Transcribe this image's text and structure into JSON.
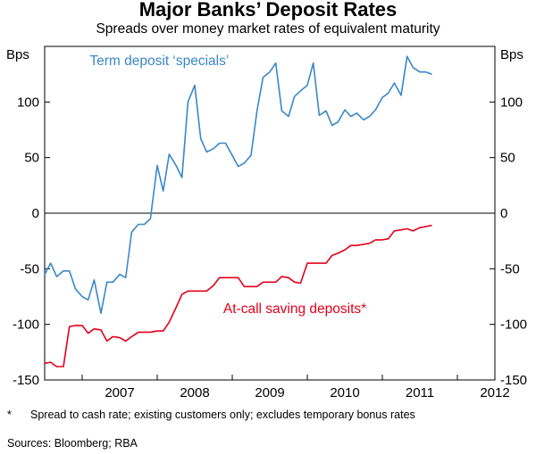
{
  "title": "Major Banks’ Deposit Rates",
  "subtitle": "Spreads over money market rates of equivalent maturity",
  "footnote": {
    "mark": "*",
    "text": "Spread to cash rate; existing customers only; excludes temporary bonus rates"
  },
  "sources": "Sources: Bloomberg; RBA",
  "colors": {
    "term": "#3a87c8",
    "call": "#e3001b",
    "axis": "#000000"
  },
  "chart_data": {
    "type": "line",
    "y_unit_left": "Bps",
    "y_unit_right": "Bps",
    "ylim": [
      -150,
      150
    ],
    "yticks": [
      -150,
      -100,
      -50,
      0,
      50,
      100
    ],
    "xlim": [
      2006.5,
      2012.5
    ],
    "x_year_labels": [
      "2007",
      "2008",
      "2009",
      "2010",
      "2011",
      "2012"
    ],
    "zero_line": true,
    "grid": false,
    "series": [
      {
        "name": "Term deposit ‘specials’",
        "color": "#3a87c8",
        "x": [
          2006.5,
          2006.58,
          2006.66,
          2006.75,
          2006.83,
          2006.91,
          2007.0,
          2007.08,
          2007.16,
          2007.25,
          2007.33,
          2007.41,
          2007.5,
          2007.58,
          2007.66,
          2007.75,
          2007.83,
          2007.91,
          2008.0,
          2008.08,
          2008.16,
          2008.25,
          2008.33,
          2008.41,
          2008.5,
          2008.58,
          2008.66,
          2008.75,
          2008.83,
          2008.91,
          2009.0,
          2009.08,
          2009.16,
          2009.25,
          2009.33,
          2009.41,
          2009.5,
          2009.58,
          2009.66,
          2009.75,
          2009.83,
          2009.91,
          2010.0,
          2010.08,
          2010.16,
          2010.25,
          2010.33,
          2010.41,
          2010.5,
          2010.58,
          2010.66,
          2010.75,
          2010.83,
          2010.91,
          2011.0,
          2011.08,
          2011.16,
          2011.25,
          2011.33,
          2011.41,
          2011.5,
          2011.58,
          2011.66
        ],
        "values": [
          -55,
          -45,
          -57,
          -52,
          -52,
          -68,
          -75,
          -78,
          -60,
          -90,
          -62,
          -62,
          -55,
          -58,
          -17,
          -10,
          -10,
          -5,
          43,
          20,
          53,
          43,
          32,
          100,
          115,
          67,
          55,
          58,
          63,
          63,
          52,
          42,
          45,
          52,
          92,
          122,
          127,
          135,
          92,
          87,
          105,
          110,
          115,
          135,
          88,
          92,
          79,
          82,
          93,
          87,
          90,
          84,
          87,
          93,
          104,
          108,
          117,
          106,
          141,
          131,
          127,
          127,
          125
        ]
      },
      {
        "name": "At-call saving deposits*",
        "color": "#e3001b",
        "x": [
          2006.5,
          2006.58,
          2006.66,
          2006.75,
          2006.83,
          2006.91,
          2007.0,
          2007.08,
          2007.16,
          2007.25,
          2007.33,
          2007.41,
          2007.5,
          2007.58,
          2007.66,
          2007.75,
          2007.83,
          2007.91,
          2008.0,
          2008.08,
          2008.16,
          2008.25,
          2008.33,
          2008.41,
          2008.5,
          2008.58,
          2008.66,
          2008.75,
          2008.83,
          2008.91,
          2009.0,
          2009.08,
          2009.16,
          2009.25,
          2009.33,
          2009.41,
          2009.5,
          2009.58,
          2009.66,
          2009.75,
          2009.83,
          2009.91,
          2010.0,
          2010.08,
          2010.16,
          2010.25,
          2010.33,
          2010.41,
          2010.5,
          2010.58,
          2010.66,
          2010.75,
          2010.83,
          2010.91,
          2011.0,
          2011.08,
          2011.16,
          2011.25,
          2011.33,
          2011.41,
          2011.5,
          2011.58,
          2011.66
        ],
        "values": [
          -135,
          -134,
          -138,
          -138,
          -102,
          -101,
          -101,
          -108,
          -104,
          -105,
          -115,
          -111,
          -112,
          -115,
          -111,
          -107,
          -107,
          -107,
          -106,
          -106,
          -98,
          -85,
          -73,
          -70,
          -70,
          -70,
          -70,
          -65,
          -58,
          -58,
          -58,
          -58,
          -66,
          -66,
          -66,
          -62,
          -62,
          -62,
          -57,
          -58,
          -62,
          -63,
          -45,
          -45,
          -45,
          -45,
          -38,
          -36,
          -33,
          -29,
          -29,
          -28,
          -27,
          -24,
          -24,
          -23,
          -16,
          -15,
          -14,
          -16,
          -13,
          -12,
          -11
        ]
      }
    ],
    "annotations": [
      {
        "text": "Term deposit ‘specials’",
        "x": 2007.1,
        "y": 133,
        "color": "#3a87c8"
      },
      {
        "text": "At-call saving deposits*",
        "x": 2008.88,
        "y": -90,
        "color": "#e3001b"
      }
    ]
  }
}
